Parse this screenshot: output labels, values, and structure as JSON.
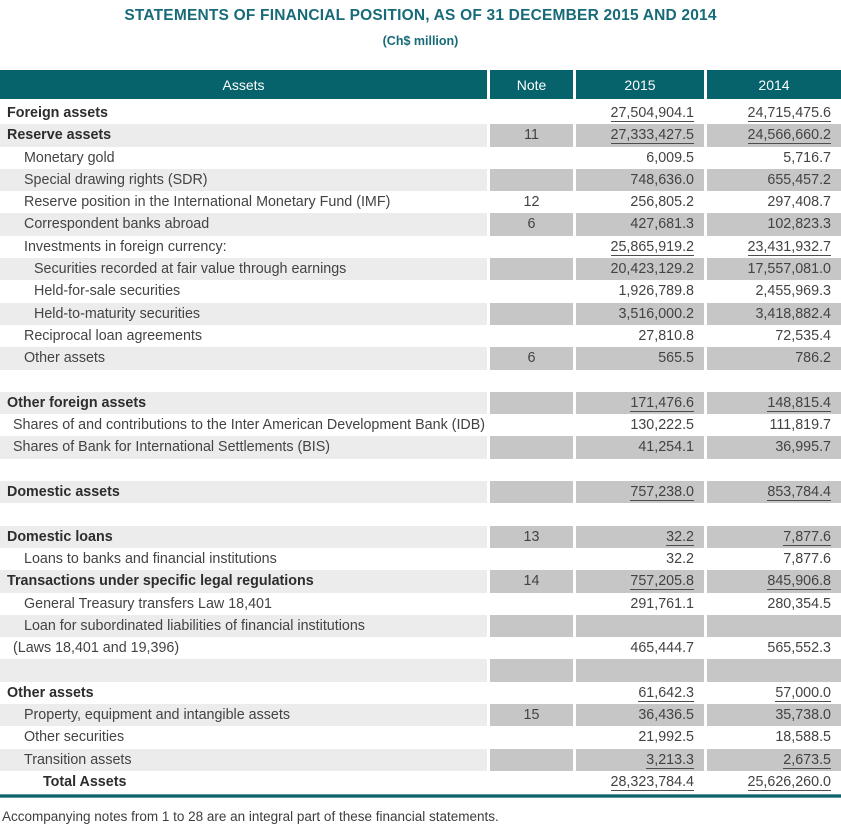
{
  "title": "STATEMENTS OF FINANCIAL POSITION, AS OF 31 DECEMBER 2015 AND 2014",
  "subtitle": "(Ch$ million)",
  "colors": {
    "header_teal": "#06626b",
    "title_teal": "#176b79",
    "shade_label": "#ececec",
    "shade_value": "#c6c6c6",
    "total_rule_teal": "#0e646c"
  },
  "table": {
    "headers": {
      "assets": "Assets",
      "note": "Note",
      "y2015": "2015",
      "y2014": "2014"
    },
    "rows": [
      {
        "label": "Foreign assets",
        "note": "",
        "v2015": "27,504,904.1",
        "v2014": "24,715,475.6",
        "bold": true,
        "level": 0,
        "shaded": false,
        "underline": true
      },
      {
        "label": "Reserve assets",
        "note": "11",
        "v2015": "27,333,427.5",
        "v2014": "24,566,660.2",
        "bold": true,
        "level": 0,
        "shaded": true,
        "underline": true
      },
      {
        "label": "Monetary gold",
        "note": "",
        "v2015": "6,009.5",
        "v2014": "5,716.7",
        "level": 2,
        "shaded": false
      },
      {
        "label": "Special drawing rights (SDR)",
        "note": "",
        "v2015": "748,636.0",
        "v2014": "655,457.2",
        "level": 2,
        "shaded": true
      },
      {
        "label": "Reserve position in the International Monetary Fund (IMF)",
        "note": "12",
        "v2015": "256,805.2",
        "v2014": "297,408.7",
        "level": 2,
        "shaded": false
      },
      {
        "label": "Correspondent banks abroad",
        "note": "6",
        "v2015": "427,681.3",
        "v2014": "102,823.3",
        "level": 2,
        "shaded": true
      },
      {
        "label": "Investments in foreign currency:",
        "note": "",
        "v2015": "25,865,919.2",
        "v2014": "23,431,932.7",
        "level": 2,
        "shaded": false,
        "underline": true
      },
      {
        "label": "Securities recorded at fair value through earnings",
        "note": "",
        "v2015": "20,423,129.2",
        "v2014": "17,557,081.0",
        "level": 3,
        "shaded": true
      },
      {
        "label": "Held-for-sale securities",
        "note": "",
        "v2015": "1,926,789.8",
        "v2014": "2,455,969.3",
        "level": 3,
        "shaded": false
      },
      {
        "label": "Held-to-maturity securities",
        "note": "",
        "v2015": "3,516,000.2",
        "v2014": "3,418,882.4",
        "level": 3,
        "shaded": true
      },
      {
        "label": "Reciprocal loan agreements",
        "note": "",
        "v2015": "27,810.8",
        "v2014": "72,535.4",
        "level": 2,
        "shaded": false
      },
      {
        "label": "Other assets",
        "note": "6",
        "v2015": "565.5",
        "v2014": "786.2",
        "level": 2,
        "shaded": true
      },
      {
        "blank": true,
        "shaded": false
      },
      {
        "label": "Other foreign assets",
        "note": "",
        "v2015": "171,476.6",
        "v2014": "148,815.4",
        "bold": true,
        "level": 0,
        "shaded": true,
        "underline": true
      },
      {
        "label": "Shares of and contributions to the Inter American Development Bank (IDB)",
        "note": "",
        "v2015": "130,222.5",
        "v2014": "111,819.7",
        "level": 1,
        "shaded": false
      },
      {
        "label": "Shares of Bank for International Settlements (BIS)",
        "note": "",
        "v2015": "41,254.1",
        "v2014": "36,995.7",
        "level": 1,
        "shaded": true
      },
      {
        "blank": true,
        "shaded": false
      },
      {
        "label": "Domestic assets",
        "note": "",
        "v2015": "757,238.0",
        "v2014": "853,784.4",
        "bold": true,
        "level": 0,
        "shaded": true,
        "underline": true
      },
      {
        "blank": true,
        "shaded": false
      },
      {
        "label": "Domestic loans",
        "note": "13",
        "v2015": "32.2",
        "v2014": "7,877.6",
        "bold": true,
        "level": 0,
        "shaded": true,
        "underline": true
      },
      {
        "label": "Loans to banks and financial institutions",
        "note": "",
        "v2015": "32.2",
        "v2014": "7,877.6",
        "level": 2,
        "shaded": false
      },
      {
        "label": "Transactions under specific legal regulations",
        "note": "14",
        "v2015": "757,205.8",
        "v2014": "845,906.8",
        "bold": true,
        "level": 0,
        "shaded": true,
        "underline": true
      },
      {
        "label": "General Treasury transfers Law 18,401",
        "note": "",
        "v2015": "291,761.1",
        "v2014": "280,354.5",
        "level": 2,
        "shaded": false
      },
      {
        "label": "Loan for subordinated liabilities of financial institutions",
        "note": "",
        "v2015": "",
        "v2014": "",
        "level": 2,
        "shaded": true
      },
      {
        "label": "(Laws 18,401 and 19,396)",
        "note": "",
        "v2015": "465,444.7",
        "v2014": "565,552.3",
        "level": 1,
        "shaded": false
      },
      {
        "blank": true,
        "shaded": true
      },
      {
        "label": "Other assets",
        "note": "",
        "v2015": "61,642.3",
        "v2014": "57,000.0",
        "bold": true,
        "level": 0,
        "shaded": false,
        "underline": true
      },
      {
        "label": "Property, equipment and intangible assets",
        "note": "15",
        "v2015": "36,436.5",
        "v2014": "35,738.0",
        "level": 2,
        "shaded": true
      },
      {
        "label": "Other securities",
        "note": "",
        "v2015": "21,992.5",
        "v2014": "18,588.5",
        "level": 2,
        "shaded": false
      },
      {
        "label": "Transition assets",
        "note": "",
        "v2015": "3,213.3",
        "v2014": "2,673.5",
        "level": 2,
        "shaded": true,
        "underline": true
      },
      {
        "label": "Total Assets",
        "note": "",
        "v2015": "28,323,784.4",
        "v2014": "25,626,260.0",
        "bold": true,
        "level": 4,
        "shaded": false,
        "underline": true
      }
    ]
  },
  "footnote": "Accompanying notes from 1 to 28 are an integral part of these financial statements."
}
